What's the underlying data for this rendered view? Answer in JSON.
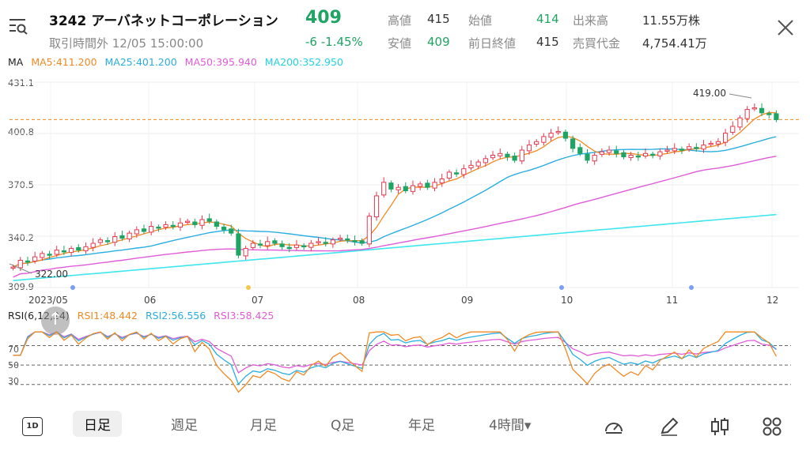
{
  "header": {
    "code": "3242",
    "name": "アーバネットコーポレーション",
    "status": "取引時間外 12/05 15:00:00",
    "price": "409",
    "change": "-6  -1.45%",
    "quotes": {
      "high_label": "高値",
      "high": "415",
      "low_label": "安値",
      "low": "409",
      "open_label": "始値",
      "open": "414",
      "prev_label": "前日終値",
      "prev": "415",
      "volume_label": "出来高",
      "volume": "11.55万株",
      "turnover_label": "売買代金",
      "turnover": "4,754.41万"
    }
  },
  "ma_legend": {
    "label": "MA",
    "ma5": "MA5:411.200",
    "ma25": "MA25:401.200",
    "ma50": "MA50:395.940",
    "ma200": "MA200:352.950"
  },
  "colors": {
    "up": "#e8394f",
    "down": "#1fa463",
    "ma5": "#f08a24",
    "ma25": "#2aaee0",
    "ma50": "#e05bd8",
    "ma200": "#3ee6ee"
  },
  "chart_data": [
    {
      "type": "candlestick",
      "y_ticks": [
        "431.1",
        "400.8",
        "370.5",
        "340.2",
        "309.9"
      ],
      "ylim": [
        309.9,
        431.1
      ],
      "x_ticks": [
        "2023/05",
        "06",
        "07",
        "08",
        "09",
        "10",
        "11",
        "12"
      ],
      "annotations": {
        "max": "419.00",
        "min": "322.00"
      },
      "reference_price": 409,
      "closes": [
        322,
        326,
        325,
        328,
        330,
        329,
        332,
        331,
        333,
        332,
        334,
        336,
        338,
        337,
        340,
        339,
        342,
        344,
        343,
        346,
        345,
        347,
        346,
        348,
        349,
        347,
        350,
        349,
        346,
        344,
        342,
        329,
        333,
        336,
        335,
        337,
        336,
        334,
        333,
        335,
        334,
        336,
        337,
        336,
        338,
        339,
        338,
        337,
        336,
        352,
        364,
        372,
        368,
        369,
        367,
        370,
        371,
        369,
        372,
        374,
        378,
        377,
        380,
        382,
        384,
        386,
        388,
        389,
        387,
        385,
        391,
        394,
        396,
        399,
        401,
        402,
        398,
        392,
        389,
        385,
        388,
        390,
        391,
        389,
        387,
        388,
        387,
        389,
        388,
        390,
        391,
        392,
        391,
        393,
        392,
        394,
        395,
        396,
        401,
        405,
        410,
        415,
        416,
        413,
        412,
        409
      ]
    },
    {
      "type": "line",
      "legend": {
        "label": "RSI(6,12,24)",
        "rsi1": "RSI1:48.442",
        "rsi2": "RSI2:56.556",
        "rsi3": "RSI3:58.425"
      },
      "y_ticks": [
        "70",
        "50",
        "30"
      ],
      "ylim": [
        20,
        85
      ]
    }
  ],
  "toolbar": {
    "d1": "1D",
    "tabs": [
      "日足",
      "週足",
      "月足",
      "Q足",
      "年足",
      "4時間▾"
    ]
  }
}
